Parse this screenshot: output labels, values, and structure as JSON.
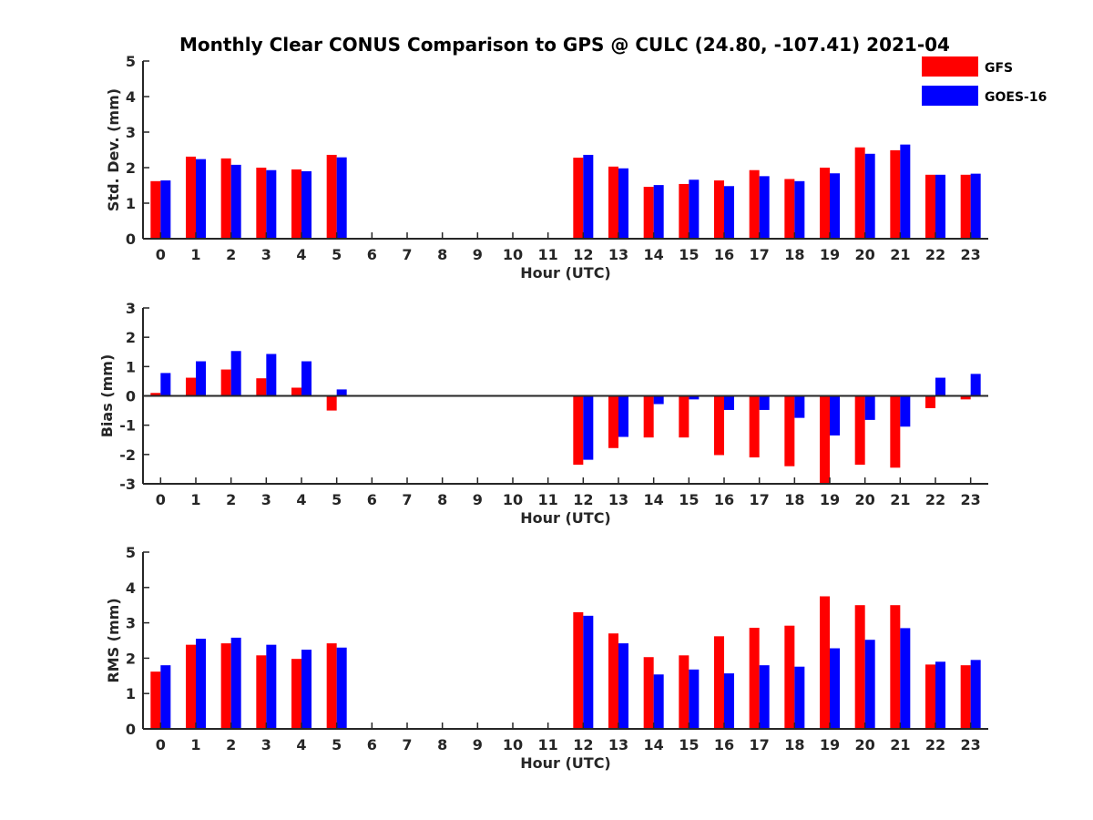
{
  "chart_data": {
    "type": "bar",
    "title": "Monthly Clear CONUS Comparison to GPS @ CULC (24.80, -107.41) 2021-04",
    "colors": {
      "GFS": "#ff0000",
      "GOES-16": "#0000ff"
    },
    "legend": {
      "placement": "top-right",
      "entries": [
        "GFS",
        "GOES-16"
      ]
    },
    "categories": [
      "0",
      "1",
      "2",
      "3",
      "4",
      "5",
      "6",
      "7",
      "8",
      "9",
      "10",
      "11",
      "12",
      "13",
      "14",
      "15",
      "16",
      "17",
      "18",
      "19",
      "20",
      "21",
      "22",
      "23"
    ],
    "panels": [
      {
        "ylabel": "Std. Dev. (mm)",
        "xlabel": "Hour (UTC)",
        "ylim": [
          0,
          5
        ],
        "yticks": [
          0,
          1,
          2,
          3,
          4,
          5
        ],
        "series": [
          {
            "name": "GFS",
            "values": [
              1.62,
              2.31,
              2.26,
              2.0,
              1.95,
              2.36,
              null,
              null,
              null,
              null,
              null,
              null,
              2.28,
              2.03,
              1.46,
              1.54,
              1.64,
              1.93,
              1.68,
              2.0,
              2.57,
              2.49,
              1.8,
              1.8
            ]
          },
          {
            "name": "GOES-16",
            "values": [
              1.64,
              2.24,
              2.08,
              1.93,
              1.9,
              2.29,
              null,
              null,
              null,
              null,
              null,
              null,
              2.36,
              1.98,
              1.51,
              1.66,
              1.48,
              1.76,
              1.62,
              1.84,
              2.39,
              2.65,
              1.8,
              1.83
            ]
          }
        ]
      },
      {
        "ylabel": "Bias (mm)",
        "xlabel": "Hour (UTC)",
        "ylim": [
          -3,
          3
        ],
        "yticks": [
          -3,
          -2,
          -1,
          0,
          1,
          2,
          3
        ],
        "series": [
          {
            "name": "GFS",
            "values": [
              0.1,
              0.62,
              0.9,
              0.6,
              0.28,
              -0.5,
              null,
              null,
              null,
              null,
              null,
              null,
              -2.35,
              -1.78,
              -1.42,
              -1.42,
              -2.02,
              -2.1,
              -2.4,
              -3.0,
              -2.35,
              -2.45,
              -0.42,
              -0.12
            ]
          },
          {
            "name": "GOES-16",
            "values": [
              0.78,
              1.18,
              1.53,
              1.43,
              1.18,
              0.22,
              null,
              null,
              null,
              null,
              null,
              null,
              -2.18,
              -1.4,
              -0.28,
              -0.12,
              -0.48,
              -0.48,
              -0.75,
              -1.35,
              -0.82,
              -1.05,
              0.62,
              0.75
            ]
          }
        ]
      },
      {
        "ylabel": "RMS (mm)",
        "xlabel": "Hour (UTC)",
        "ylim": [
          0,
          5
        ],
        "yticks": [
          0,
          1,
          2,
          3,
          4,
          5
        ],
        "series": [
          {
            "name": "GFS",
            "values": [
              1.62,
              2.38,
              2.42,
              2.08,
              1.98,
              2.42,
              null,
              null,
              null,
              null,
              null,
              null,
              3.3,
              2.7,
              2.03,
              2.08,
              2.62,
              2.86,
              2.92,
              3.75,
              3.5,
              3.5,
              1.82,
              1.8
            ]
          },
          {
            "name": "GOES-16",
            "values": [
              1.8,
              2.55,
              2.58,
              2.38,
              2.24,
              2.3,
              null,
              null,
              null,
              null,
              null,
              null,
              3.2,
              2.42,
              1.54,
              1.68,
              1.57,
              1.8,
              1.76,
              2.28,
              2.52,
              2.85,
              1.9,
              1.95
            ]
          }
        ]
      }
    ]
  }
}
